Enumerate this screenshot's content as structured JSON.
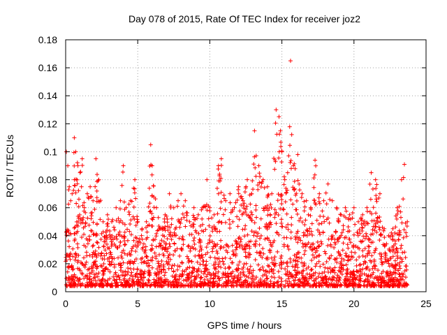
{
  "chart_data": {
    "type": "scatter",
    "title": "Day 078 of 2015, Rate Of TEC Index for receiver joz2",
    "xlabel": "GPS time / hours",
    "ylabel": "ROTI / TECUs",
    "xlim": [
      0,
      25
    ],
    "ylim": [
      0,
      0.18
    ],
    "x_ticks": [
      0,
      5,
      10,
      15,
      20,
      25
    ],
    "x_tick_labels": [
      "0",
      "5",
      "10",
      "15",
      "20",
      "25"
    ],
    "y_ticks": [
      0,
      0.02,
      0.04,
      0.06,
      0.08,
      0.1,
      0.12,
      0.14,
      0.16,
      0.18
    ],
    "y_tick_labels": [
      "0",
      "0.02",
      "0.04",
      "0.06",
      "0.08",
      "0.1",
      "0.12",
      "0.14",
      "0.16",
      "0.18"
    ],
    "grid": true,
    "marker": "+",
    "color": "#ff0000",
    "series": [
      {
        "name": "ROTI",
        "x": [
          0.05,
          0.15,
          0.25,
          0.35,
          0.45,
          0.6,
          0.7,
          0.85,
          1.0,
          1.15,
          1.3,
          1.5,
          1.7,
          1.9,
          2.1,
          2.3,
          2.6,
          2.9,
          3.2,
          3.5,
          3.8,
          4.0,
          4.2,
          4.5,
          4.8,
          5.0,
          5.3,
          5.6,
          5.9,
          6.0,
          6.3,
          6.6,
          6.9,
          7.2,
          7.5,
          7.8,
          8.0,
          8.3,
          8.6,
          8.9,
          9.2,
          9.5,
          9.8,
          10.0,
          10.3,
          10.6,
          10.8,
          11.1,
          11.4,
          11.7,
          12.0,
          12.3,
          12.6,
          12.9,
          13.1,
          13.4,
          13.7,
          14.0,
          14.3,
          14.6,
          14.8,
          14.9,
          15.0,
          15.2,
          15.4,
          15.6,
          15.8,
          16.1,
          16.4,
          16.7,
          17.0,
          17.3,
          17.6,
          17.9,
          18.2,
          18.5,
          18.8,
          19.1,
          19.4,
          19.7,
          20.0,
          20.3,
          20.6,
          20.9,
          21.2,
          21.5,
          21.8,
          22.1,
          22.4,
          22.7,
          23.0,
          23.3,
          23.5,
          23.7
        ],
        "y": [
          0.1,
          0.09,
          0.075,
          0.065,
          0.07,
          0.11,
          0.1,
          0.09,
          0.085,
          0.095,
          0.06,
          0.07,
          0.075,
          0.065,
          0.095,
          0.08,
          0.05,
          0.055,
          0.05,
          0.06,
          0.065,
          0.09,
          0.06,
          0.065,
          0.08,
          0.05,
          0.045,
          0.05,
          0.105,
          0.09,
          0.06,
          0.045,
          0.055,
          0.07,
          0.06,
          0.065,
          0.07,
          0.065,
          0.05,
          0.06,
          0.055,
          0.06,
          0.08,
          0.06,
          0.055,
          0.09,
          0.095,
          0.065,
          0.07,
          0.06,
          0.075,
          0.065,
          0.08,
          0.07,
          0.115,
          0.09,
          0.08,
          0.075,
          0.07,
          0.13,
          0.125,
          0.115,
          0.1,
          0.08,
          0.085,
          0.165,
          0.09,
          0.098,
          0.07,
          0.065,
          0.06,
          0.094,
          0.07,
          0.065,
          0.077,
          0.065,
          0.06,
          0.055,
          0.06,
          0.055,
          0.06,
          0.05,
          0.055,
          0.06,
          0.085,
          0.08,
          0.07,
          0.045,
          0.04,
          0.045,
          0.06,
          0.08,
          0.091,
          0.05
        ]
      }
    ]
  }
}
